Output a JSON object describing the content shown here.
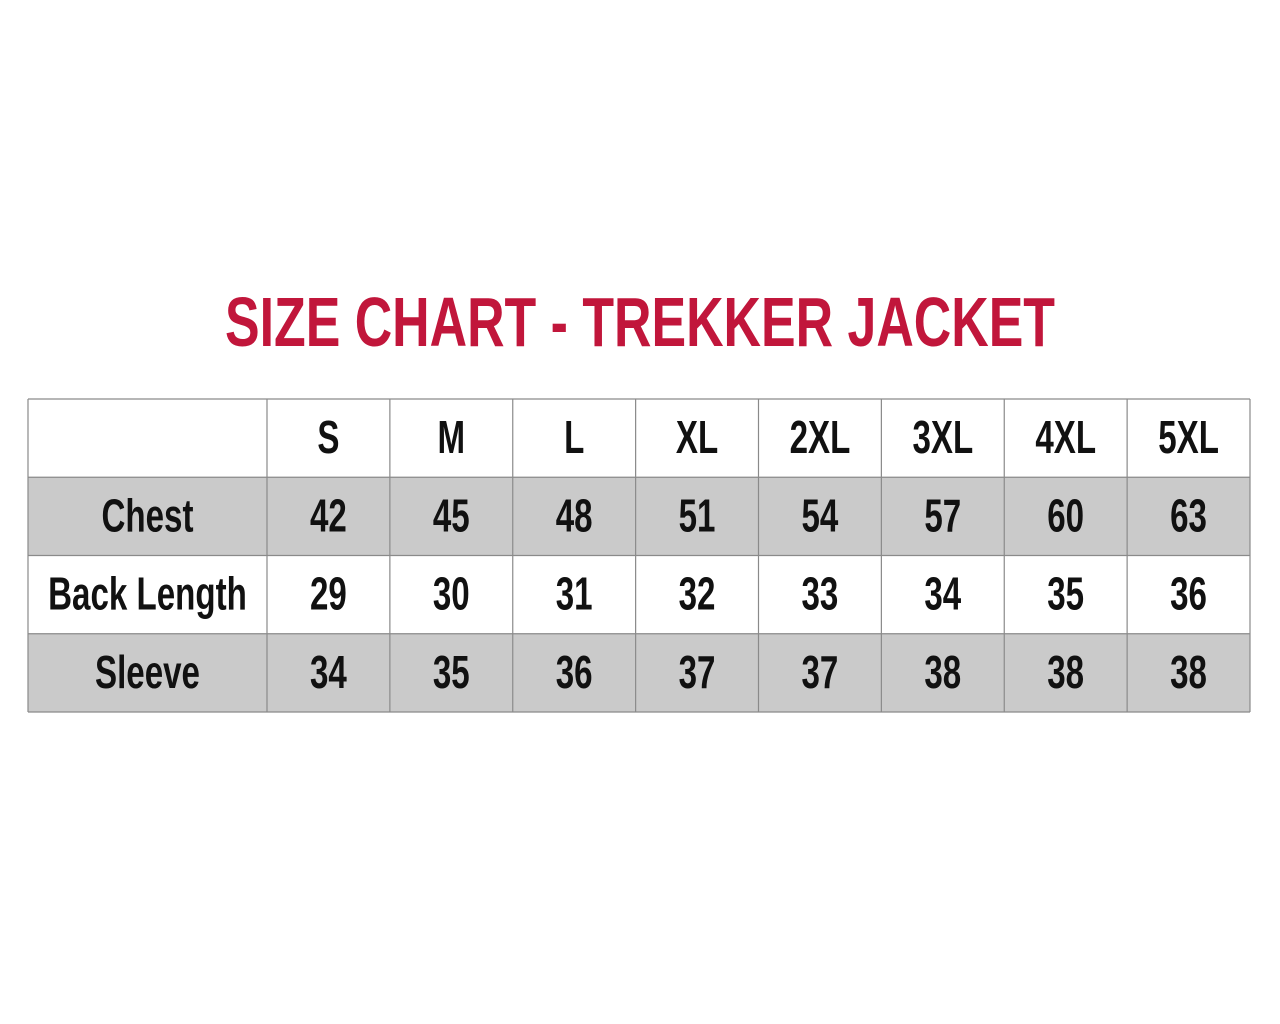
{
  "title": "SIZE CHART - TREKKER JACKET",
  "table": {
    "sizes": [
      "S",
      "M",
      "L",
      "XL",
      "2XL",
      "3XL",
      "4XL",
      "5XL"
    ],
    "rows": [
      {
        "label": "Chest",
        "values": [
          42,
          45,
          48,
          51,
          54,
          57,
          60,
          63
        ]
      },
      {
        "label": "Back Length",
        "values": [
          29,
          30,
          31,
          32,
          33,
          34,
          35,
          36
        ]
      },
      {
        "label": "Sleeve",
        "values": [
          34,
          35,
          36,
          37,
          37,
          38,
          38,
          38
        ]
      }
    ]
  }
}
